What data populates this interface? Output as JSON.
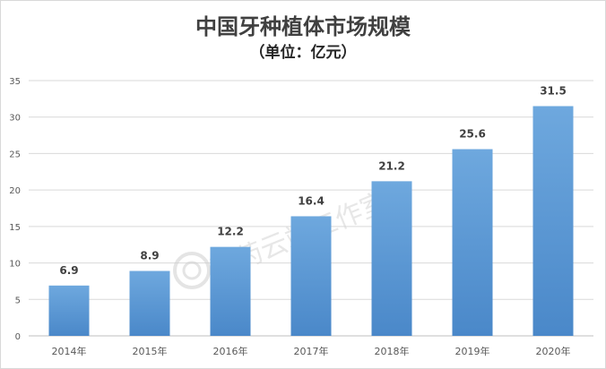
{
  "title": "中国牙种植体市场规模",
  "subtitle": "（单位：亿元）",
  "watermark": "医药云端工作室",
  "colors": {
    "bar": "#5b9bd5",
    "bar_top": "#6aa6dc",
    "grid": "#d9d9d9",
    "axis": "#bfbfbf"
  },
  "chart_data": {
    "type": "bar",
    "title": "中国牙种植体市场规模",
    "subtitle": "（单位：亿元）",
    "categories": [
      "2014年",
      "2015年",
      "2016年",
      "2017年",
      "2018年",
      "2019年",
      "2020年"
    ],
    "values": [
      6.9,
      8.9,
      12.2,
      16.4,
      21.2,
      25.6,
      31.5
    ],
    "data_labels": [
      "6.9",
      "8.9",
      "12.2",
      "16.4",
      "21.2",
      "25.6",
      "31.5"
    ],
    "ylim": [
      0,
      35
    ],
    "yticks": [
      0,
      5,
      10,
      15,
      20,
      25,
      30,
      35
    ],
    "grid": true,
    "legend": "none"
  }
}
